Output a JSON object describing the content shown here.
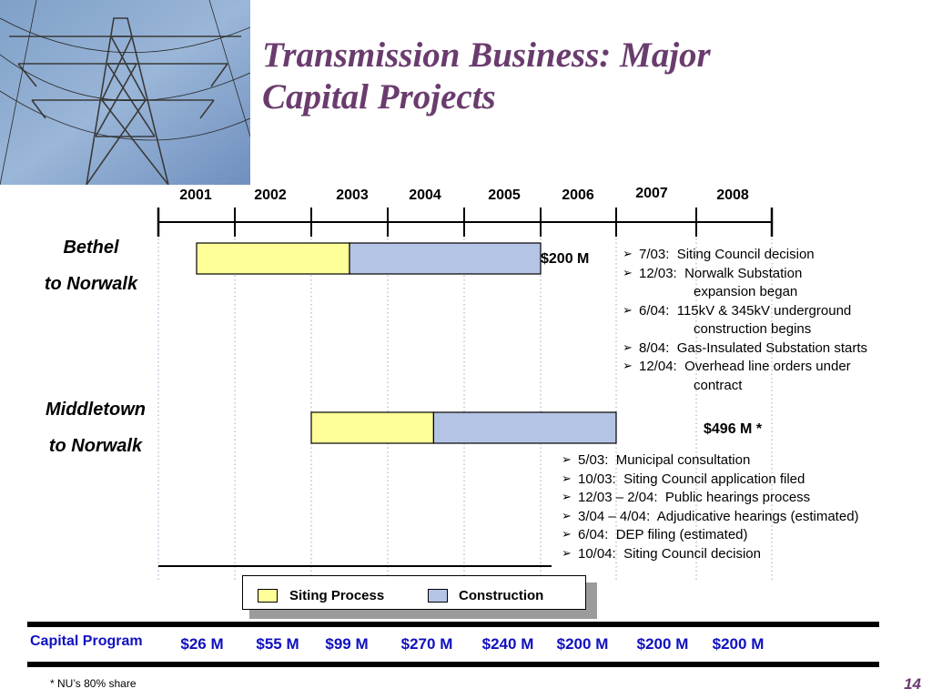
{
  "slide": {
    "title_line1": "Transmission Business:  Major",
    "title_line2": "Capital Projects",
    "page_number": "14",
    "footnote": "* NU’s 80% share"
  },
  "legend": {
    "siting_label": "Siting Process",
    "construction_label": "Construction"
  },
  "colors": {
    "siting": "#ffff99",
    "construction": "#b4c4e4",
    "title": "#6a3c6e",
    "program": "#1010c0"
  },
  "capital_program": {
    "label": "Capital Program",
    "values": [
      "$26 M",
      "$55 M",
      "$99 M",
      "$270 M",
      "$240 M",
      "$200 M",
      "$200 M",
      "$200 M"
    ]
  },
  "projects": [
    {
      "name_line1": "Bethel",
      "name_line2": "to Norwalk",
      "cost": "$200 M",
      "milestones": [
        {
          "date": "7/03:",
          "text": "Siting Council decision"
        },
        {
          "date": "12/03:",
          "text": "Norwalk Substation",
          "text2": "expansion began"
        },
        {
          "date": "6/04:",
          "text": "115kV & 345kV underground",
          "text2": "construction begins"
        },
        {
          "date": "8/04:",
          "text": "Gas-Insulated Substation starts"
        },
        {
          "date": "12/04:",
          "text": "Overhead line orders under",
          "text2": "contract"
        }
      ]
    },
    {
      "name_line1": "Middletown",
      "name_line2": "to Norwalk",
      "cost": "$496 M *",
      "milestones": [
        {
          "date": "5/03:",
          "text": "Municipal consultation"
        },
        {
          "date": "10/03:",
          "text": "Siting Council application filed"
        },
        {
          "date": "12/03 – 2/04:",
          "text": "Public hearings process"
        },
        {
          "date": "3/04 – 4/04:",
          "text": "Adjudicative hearings (estimated)"
        },
        {
          "date": "6/04:",
          "text": "DEP filing (estimated)"
        },
        {
          "date": "10/04:",
          "text": "Siting Council decision"
        }
      ]
    }
  ],
  "chart_data": {
    "type": "gantt",
    "years": [
      "2001",
      "2002",
      "2003",
      "2004",
      "2005",
      "2006",
      "2007",
      "2008"
    ],
    "tasks": [
      {
        "project": "Bethel to Norwalk",
        "phase": "Siting Process",
        "start": 2001.5,
        "end": 2003.5
      },
      {
        "project": "Bethel to Norwalk",
        "phase": "Construction",
        "start": 2003.5,
        "end": 2006.0
      },
      {
        "project": "Middletown to Norwalk",
        "phase": "Siting Process",
        "start": 2003.0,
        "end": 2004.6
      },
      {
        "project": "Middletown to Norwalk",
        "phase": "Construction",
        "start": 2004.6,
        "end": 2007.0
      }
    ]
  }
}
